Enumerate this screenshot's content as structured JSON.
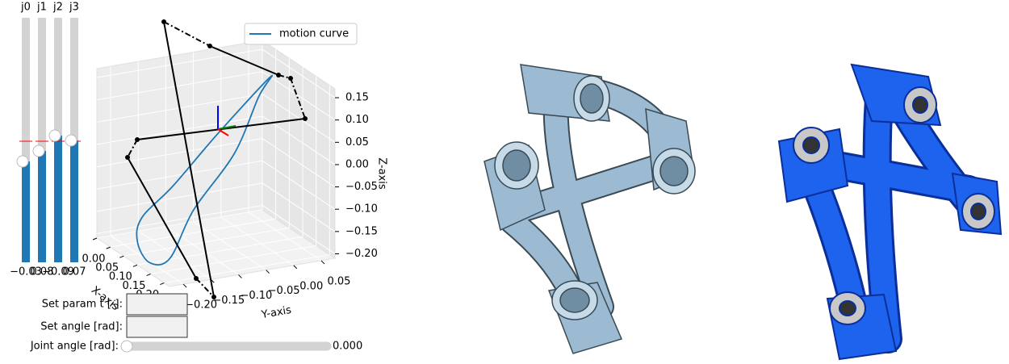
{
  "chart_data": {
    "type": "line3d",
    "xlabel": "X-axis",
    "ylabel": "Y-axis",
    "zlabel": "Z-axis",
    "xlim": [
      0,
      0.27
    ],
    "ylim": [
      -0.225,
      0.075
    ],
    "zlim": [
      -0.21,
      0.17
    ],
    "xticks": [
      {
        "value": 0,
        "label": "0.00"
      },
      0.05,
      {
        "value": 0.1,
        "label": "0.10"
      },
      0.15,
      {
        "value": 0.2,
        "label": "0.20"
      },
      0.25
    ],
    "yticks": [
      {
        "value": -0.2,
        "label": "−0.20"
      },
      {
        "value": -0.15,
        "label": "−0.15"
      },
      {
        "value": -0.1,
        "label": "−0.10"
      },
      {
        "value": -0.05,
        "label": "−0.05"
      },
      {
        "value": 0,
        "label": "0.00"
      },
      0.05
    ],
    "zticks": [
      0.15,
      {
        "value": 0.1,
        "label": "0.10"
      },
      0.05,
      {
        "value": 0,
        "label": "0.00"
      },
      {
        "value": -0.05,
        "label": "−0.05"
      },
      {
        "value": -0.1,
        "label": "−0.10"
      },
      {
        "value": -0.15,
        "label": "−0.15"
      },
      {
        "value": -0.2,
        "label": "−0.20"
      }
    ],
    "grid": true,
    "legend": "upper right",
    "series": [
      {
        "name": "motion curve",
        "color": "#1f77b4",
        "x": [
          0.06,
          0.1,
          0.12,
          0.13,
          0.12,
          0.15,
          0.15,
          0.12,
          0.08,
          0.06
        ],
        "y": [
          0.06,
          -0.054,
          -0.145,
          -0.207,
          -0.21,
          -0.203,
          -0.166,
          -0.108,
          -0.015,
          0.039
        ],
        "z": [
          0.115,
          0.029,
          -0.061,
          -0.116,
          -0.173,
          -0.209,
          -0.208,
          -0.123,
          -0.033,
          0.075
        ]
      }
    ]
  },
  "sliders": [
    {
      "label": "j0",
      "value": "−0.03"
    },
    {
      "label": "j1",
      "value": "0.08"
    },
    {
      "label": "j2",
      "value": "−0.09"
    },
    {
      "label": "j3",
      "value": "0.07"
    }
  ],
  "controls": {
    "param_label": "Set param t [-]:",
    "angle_label": "Set angle [rad]:",
    "joint_label": "Joint angle [rad]:",
    "joint_value": "0.000"
  }
}
